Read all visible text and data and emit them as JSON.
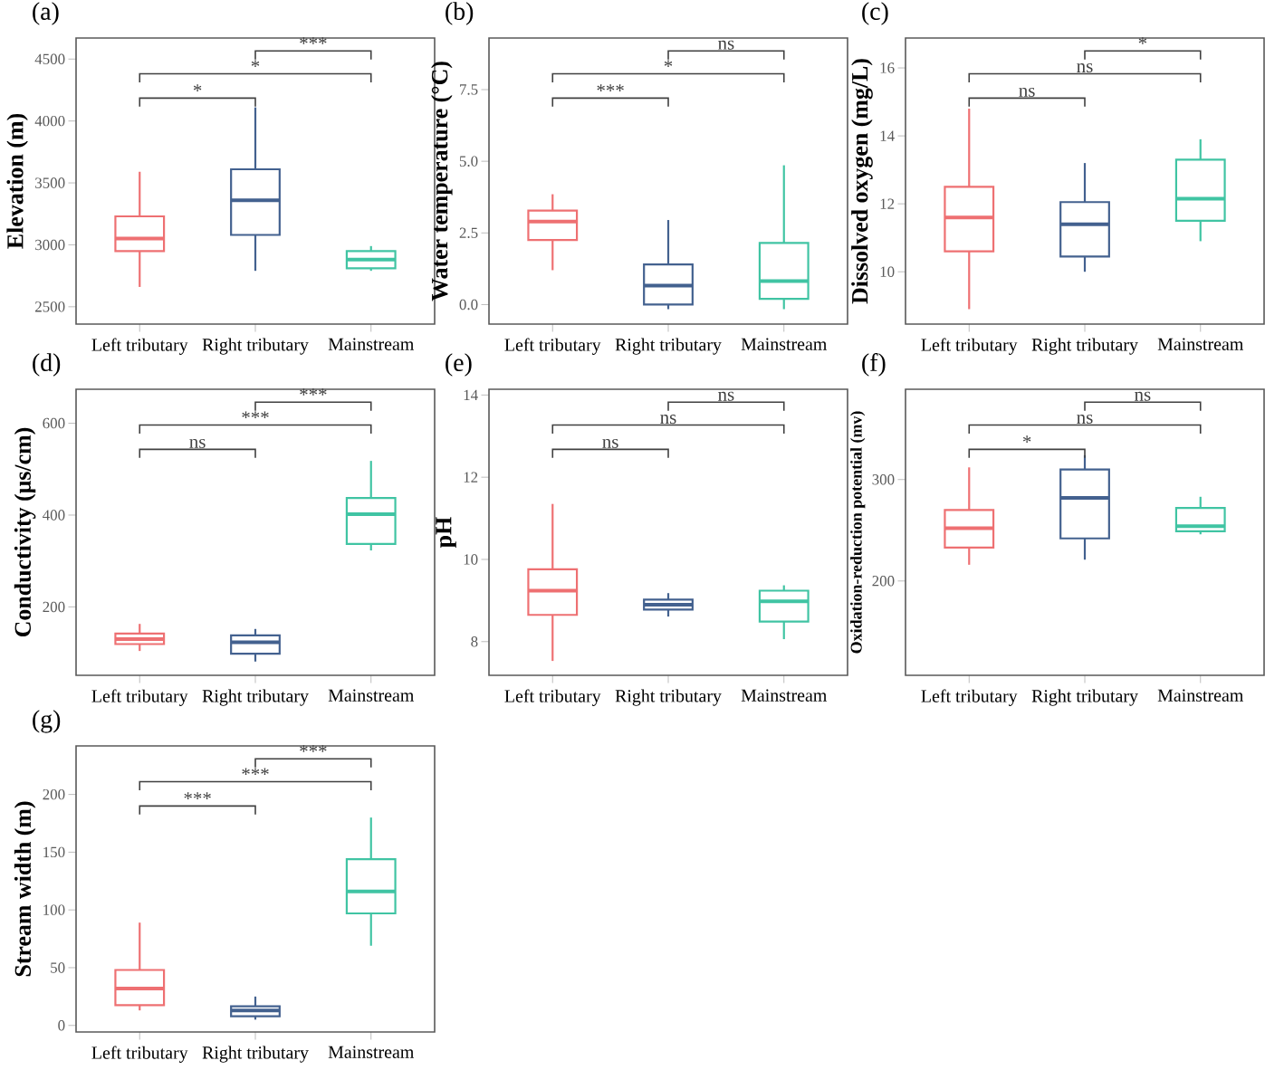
{
  "chart_data": [
    {
      "type": "box",
      "title": "(a)",
      "ylabel": "Elevation (m)",
      "categories": [
        "Left tributary",
        "Right tributary",
        "Mainstream"
      ],
      "colors": [
        "#ee7072",
        "#43618f",
        "#40c4a3"
      ],
      "boxes": [
        {
          "low": 2660,
          "q1": 2950,
          "median": 3050,
          "q3": 3230,
          "high": 3590
        },
        {
          "low": 2790,
          "q1": 3080,
          "median": 3360,
          "q3": 3610,
          "high": 4110
        },
        {
          "low": 2790,
          "q1": 2810,
          "median": 2880,
          "q3": 2950,
          "high": 2990
        }
      ],
      "ylim": [
        2360,
        4670
      ],
      "yticks": [
        2500,
        3000,
        3500,
        4000,
        4500
      ],
      "annotations": [
        "*",
        "*",
        "***"
      ]
    },
    {
      "type": "box",
      "title": "(b)",
      "ylabel": "Water temperature (°C)",
      "categories": [
        "Left tributary",
        "Right tributary",
        "Mainstream"
      ],
      "colors": [
        "#ee7072",
        "#43618f",
        "#40c4a3"
      ],
      "boxes": [
        {
          "low": 1.2,
          "q1": 2.25,
          "median": 2.9,
          "q3": 3.28,
          "high": 3.85
        },
        {
          "low": -0.16,
          "q1": 0.0,
          "median": 0.66,
          "q3": 1.4,
          "high": 2.95
        },
        {
          "low": -0.16,
          "q1": 0.2,
          "median": 0.82,
          "q3": 2.15,
          "high": 4.86
        }
      ],
      "ylim": [
        -0.68,
        9.3
      ],
      "yticks": [
        {
          "value": 0,
          "label": "0.0"
        },
        {
          "value": 2.5,
          "label": "2.5"
        },
        {
          "value": 5,
          "label": "5.0"
        },
        {
          "value": 7.5,
          "label": "7.5"
        }
      ],
      "annotations": [
        "***",
        "*",
        "ns"
      ]
    },
    {
      "type": "box",
      "title": "(c)",
      "ylabel": "Dissolved oxygen (mg/L)",
      "categories": [
        "Left tributary",
        "Right tributary",
        "Mainstream"
      ],
      "colors": [
        "#ee7072",
        "#43618f",
        "#40c4a3"
      ],
      "boxes": [
        {
          "low": 8.9,
          "q1": 10.6,
          "median": 11.6,
          "q3": 12.5,
          "high": 14.8
        },
        {
          "low": 10.0,
          "q1": 10.45,
          "median": 11.4,
          "q3": 12.05,
          "high": 13.2
        },
        {
          "low": 10.9,
          "q1": 11.5,
          "median": 12.15,
          "q3": 13.3,
          "high": 13.9
        }
      ],
      "ylim": [
        8.46,
        16.88
      ],
      "yticks": [
        10,
        12,
        14,
        16
      ],
      "annotations": [
        "ns",
        "ns",
        "*"
      ]
    },
    {
      "type": "box",
      "title": "(d)",
      "ylabel": "Conductivity (μs/cm)",
      "categories": [
        "Left tributary",
        "Right tributary",
        "Mainstream"
      ],
      "colors": [
        "#ee7072",
        "#43618f",
        "#40c4a3"
      ],
      "boxes": [
        {
          "low": 104,
          "q1": 119,
          "median": 130,
          "q3": 142,
          "high": 163
        },
        {
          "low": 81,
          "q1": 98,
          "median": 123,
          "q3": 138,
          "high": 152
        },
        {
          "low": 323,
          "q1": 337,
          "median": 402,
          "q3": 437,
          "high": 518
        }
      ],
      "ylim": [
        51,
        674
      ],
      "yticks": [
        200,
        400,
        600
      ],
      "annotations": [
        "ns",
        "***",
        "***"
      ]
    },
    {
      "type": "box",
      "title": "(e)",
      "ylabel": "pH",
      "categories": [
        "Left tributary",
        "Right tributary",
        "Mainstream"
      ],
      "colors": [
        "#ee7072",
        "#43618f",
        "#40c4a3"
      ],
      "boxes": [
        {
          "low": 7.53,
          "q1": 8.65,
          "median": 9.24,
          "q3": 9.76,
          "high": 11.35
        },
        {
          "low": 8.61,
          "q1": 8.78,
          "median": 8.9,
          "q3": 9.02,
          "high": 9.18
        },
        {
          "low": 8.06,
          "q1": 8.49,
          "median": 8.98,
          "q3": 9.24,
          "high": 9.37
        }
      ],
      "ylim": [
        7.18,
        14.14
      ],
      "yticks": [
        8,
        10,
        12,
        14
      ],
      "annotations": [
        "ns",
        "ns",
        "ns"
      ]
    },
    {
      "type": "box",
      "title": "(f)",
      "ylabel": "Oxidation-reduction potential (mv)",
      "categories": [
        "Left tributary",
        "Right tributary",
        "Mainstream"
      ],
      "colors": [
        "#ee7072",
        "#43618f",
        "#40c4a3"
      ],
      "boxes": [
        {
          "low": 216,
          "q1": 233,
          "median": 252,
          "q3": 270,
          "high": 312
        },
        {
          "low": 221,
          "q1": 242,
          "median": 282,
          "q3": 310,
          "high": 324
        },
        {
          "low": 246,
          "q1": 249,
          "median": 254,
          "q3": 272,
          "high": 283
        }
      ],
      "ylim": [
        107,
        389
      ],
      "yticks": [
        200,
        300
      ],
      "annotations": [
        "*",
        "ns",
        "ns"
      ]
    },
    {
      "type": "box",
      "title": "(g)",
      "ylabel": "Stream width (m)",
      "categories": [
        "Left tributary",
        "Right tributary",
        "Mainstream"
      ],
      "colors": [
        "#ee7072",
        "#43618f",
        "#40c4a3"
      ],
      "boxes": [
        {
          "low": 13,
          "q1": 17.6,
          "median": 32,
          "q3": 48,
          "high": 89
        },
        {
          "low": 5,
          "q1": 8,
          "median": 13,
          "q3": 16.5,
          "high": 25
        },
        {
          "low": 69,
          "q1": 97,
          "median": 116,
          "q3": 144,
          "high": 180
        }
      ],
      "ylim": [
        -5.7,
        242
      ],
      "yticks": [
        0,
        50,
        100,
        150,
        200
      ],
      "annotations": [
        "***",
        "***",
        "***"
      ]
    }
  ]
}
